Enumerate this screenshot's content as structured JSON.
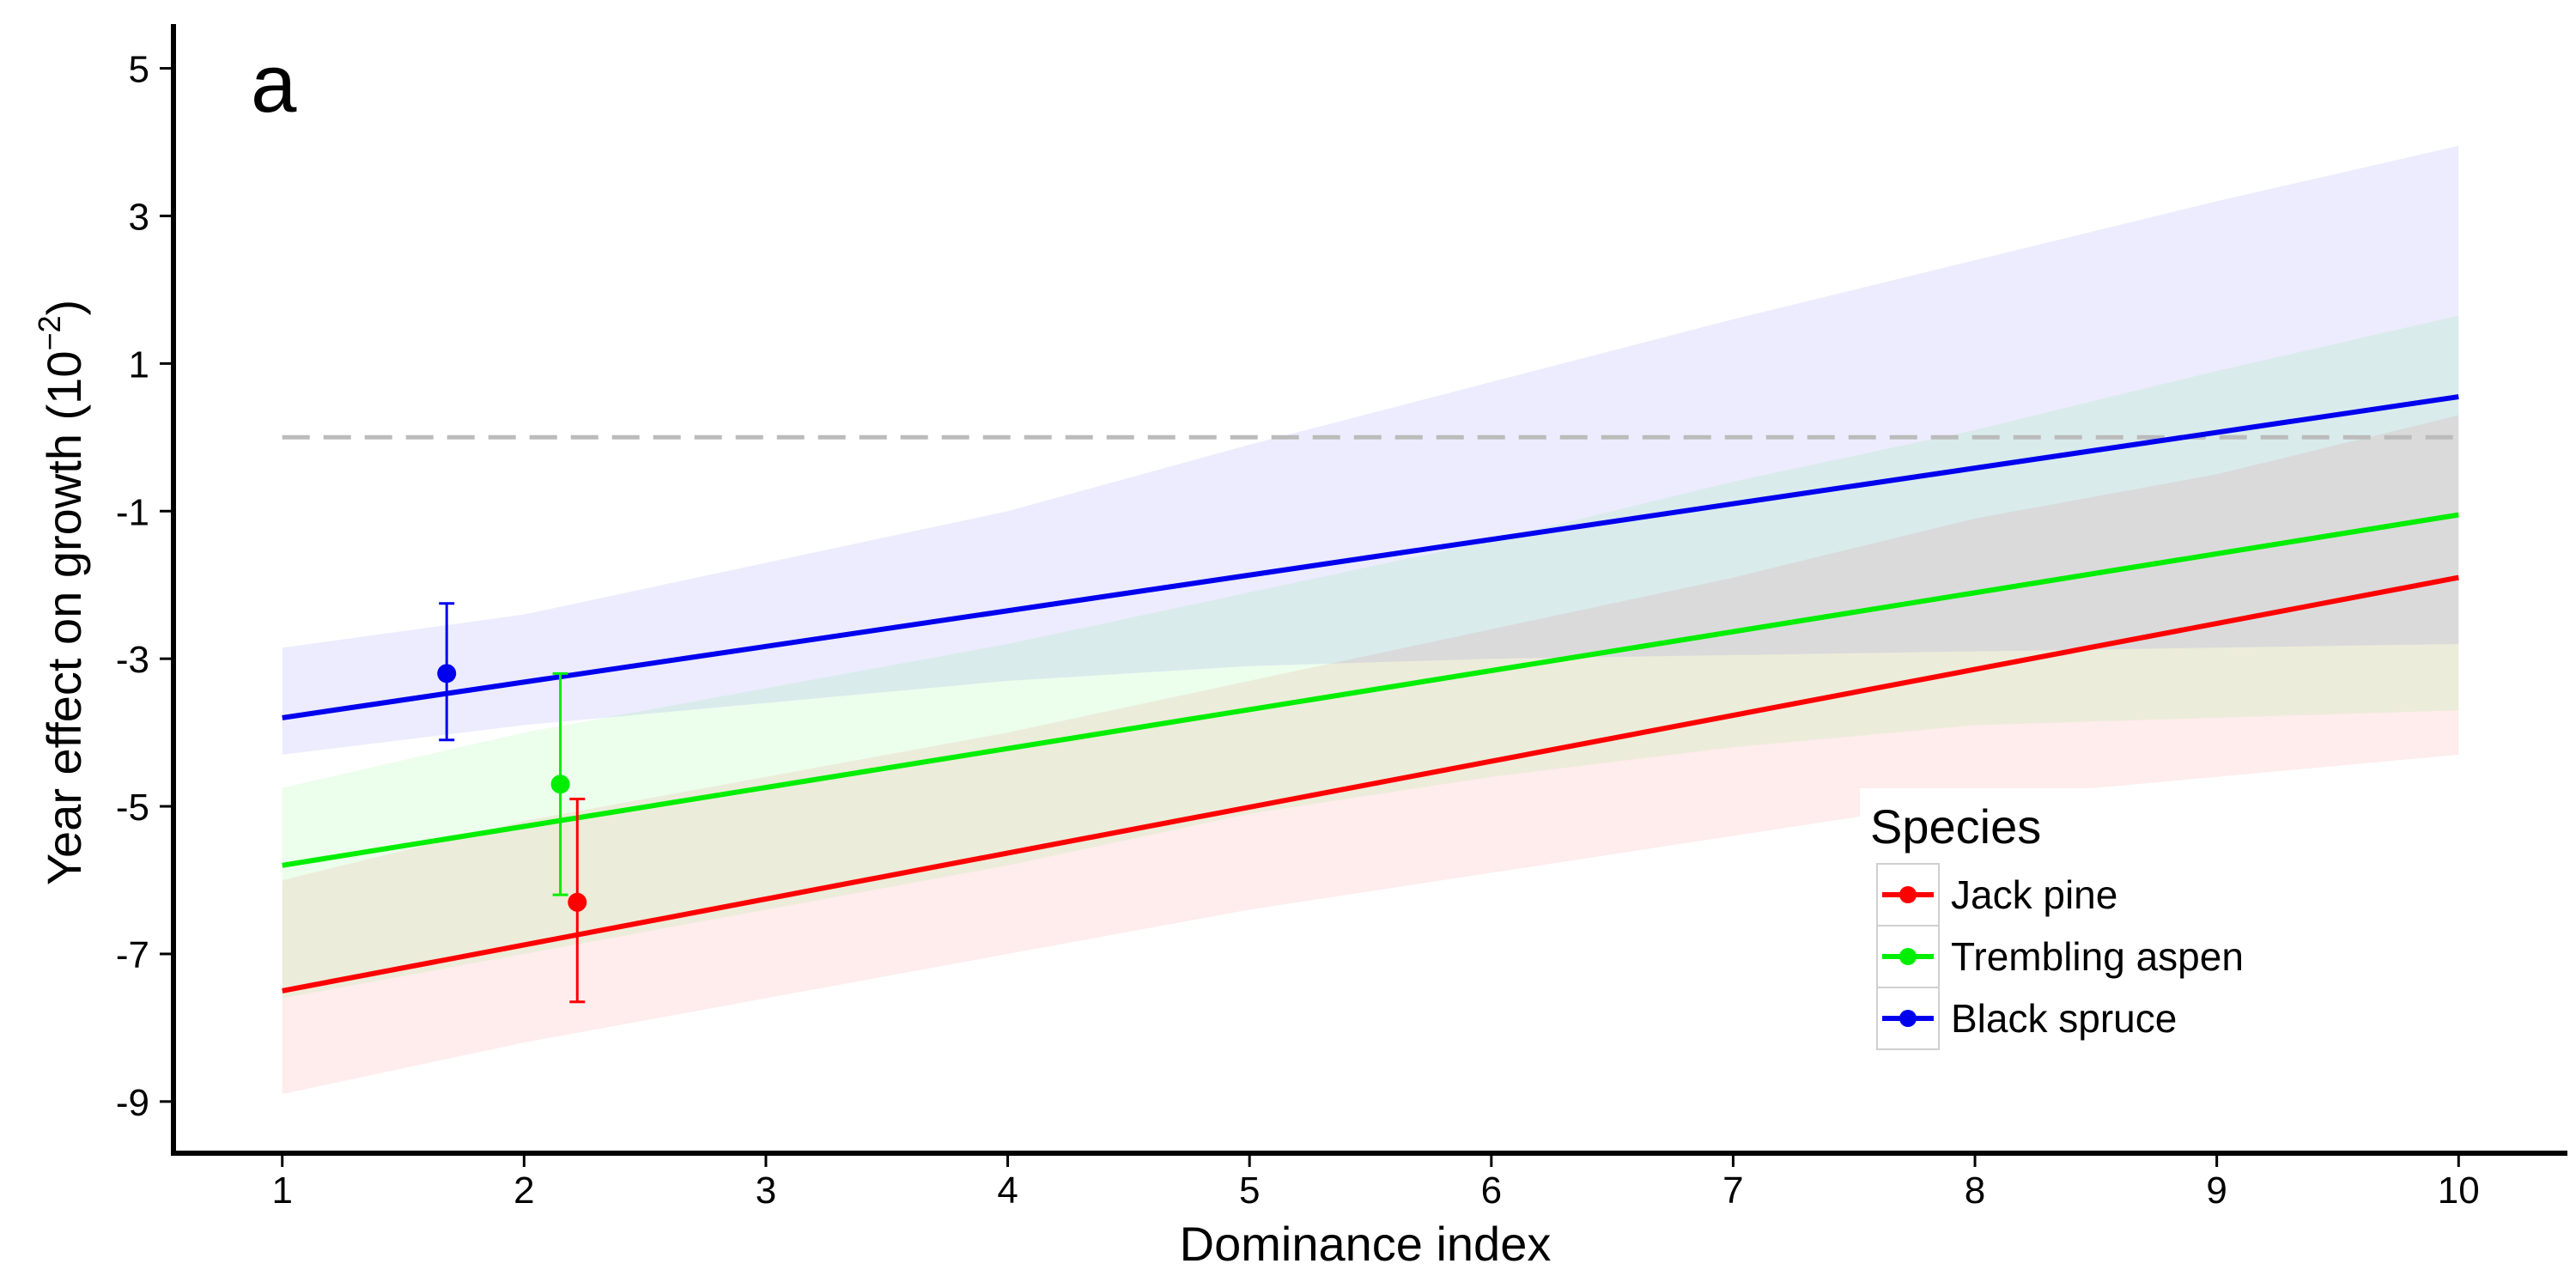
{
  "chart_data": {
    "type": "line",
    "panel_label": "a",
    "xlabel": "Dominance index",
    "ylabel": "Year effect on growth (10",
    "ylabel_sup": "−2",
    "ylabel_close": ")",
    "xlim": [
      0.55,
      10.45
    ],
    "ylim": [
      -9.7,
      5.6
    ],
    "x_ticks": [
      1,
      2,
      3,
      4,
      5,
      6,
      7,
      8,
      9,
      10
    ],
    "x_tick_labels": [
      "1",
      "2",
      "3",
      "4",
      "5",
      "6",
      "7",
      "8",
      "9",
      "10"
    ],
    "y_ticks": [
      5,
      3,
      1,
      -1,
      -3,
      -5,
      -7,
      -9
    ],
    "y_tick_labels": [
      "5",
      "3",
      "1",
      "-1",
      "-3",
      "-5",
      "-7",
      "-9"
    ],
    "reference_line": {
      "y": 0,
      "style": "dashed",
      "color": "#bbbbbb"
    },
    "legend": {
      "title": "Species",
      "position": "bottom-right"
    },
    "series": [
      {
        "name": "Jack pine",
        "color": "#ff0000",
        "line": {
          "x": [
            1,
            10
          ],
          "y": [
            -7.5,
            -1.9
          ]
        },
        "ribbon": {
          "x": [
            1,
            2,
            3,
            4,
            5,
            6,
            7,
            8,
            9,
            10
          ],
          "lower": [
            -8.9,
            -8.2,
            -7.6,
            -7.0,
            -6.4,
            -5.9,
            -5.4,
            -4.9,
            -4.6,
            -4.3
          ],
          "upper": [
            -6.0,
            -5.2,
            -4.6,
            -4.0,
            -3.3,
            -2.6,
            -1.9,
            -1.1,
            -0.5,
            0.3
          ]
        },
        "point": {
          "x": 2.22,
          "y": -6.3,
          "err_low": -7.65,
          "err_high": -4.9
        }
      },
      {
        "name": "Trembling aspen",
        "color": "#00ee00",
        "line": {
          "x": [
            1,
            10
          ],
          "y": [
            -5.8,
            -1.05
          ]
        },
        "ribbon": {
          "x": [
            1,
            2,
            3,
            4,
            5,
            6,
            7,
            8,
            9,
            10
          ],
          "lower": [
            -7.6,
            -7.0,
            -6.4,
            -5.8,
            -5.1,
            -4.6,
            -4.2,
            -3.9,
            -3.8,
            -3.7
          ],
          "upper": [
            -4.75,
            -4.0,
            -3.4,
            -2.8,
            -2.1,
            -1.4,
            -0.6,
            0.1,
            0.9,
            1.65
          ]
        },
        "point": {
          "x": 2.15,
          "y": -4.7,
          "err_low": -6.2,
          "err_high": -3.2
        }
      },
      {
        "name": "Black spruce",
        "color": "#0000ee",
        "line": {
          "x": [
            1,
            10
          ],
          "y": [
            -3.8,
            0.55
          ]
        },
        "ribbon": {
          "x": [
            1,
            2,
            3,
            4,
            5,
            6,
            7,
            8,
            9,
            10
          ],
          "lower": [
            -4.3,
            -3.9,
            -3.6,
            -3.3,
            -3.1,
            -3.0,
            -2.95,
            -2.9,
            -2.85,
            -2.8
          ],
          "upper": [
            -2.85,
            -2.4,
            -1.7,
            -1.0,
            -0.1,
            0.75,
            1.6,
            2.4,
            3.2,
            3.95
          ]
        },
        "point": {
          "x": 1.68,
          "y": -3.2,
          "err_low": -4.1,
          "err_high": -2.25
        }
      }
    ]
  }
}
